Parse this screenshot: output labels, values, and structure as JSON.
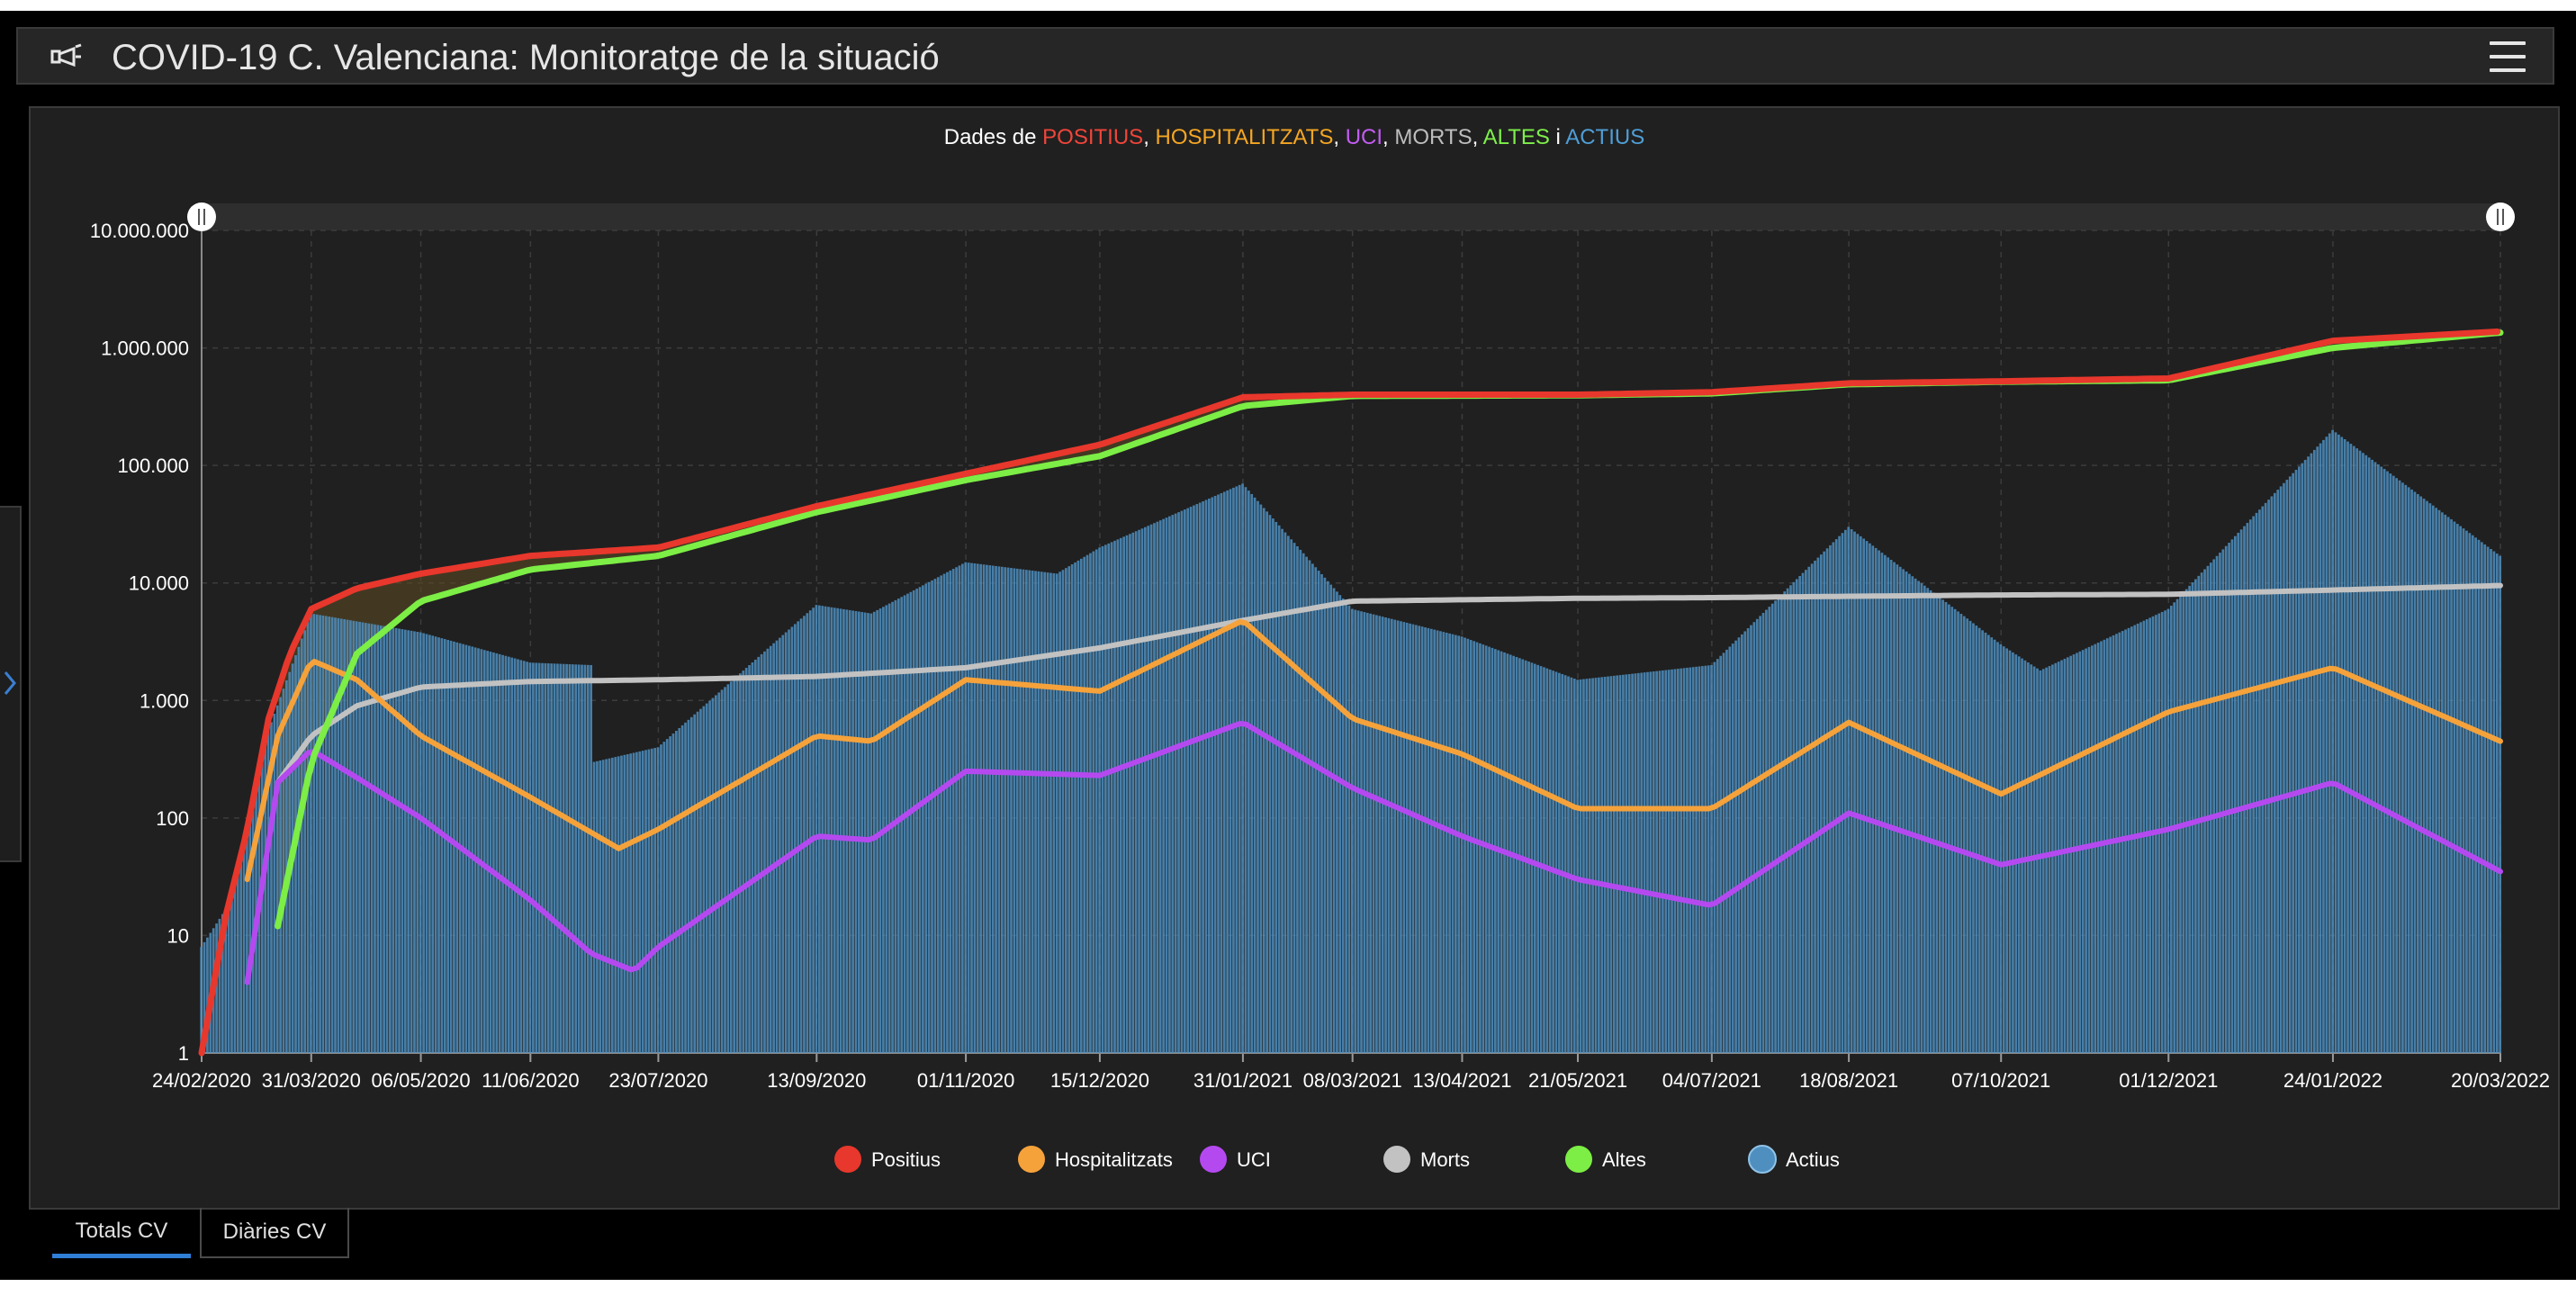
{
  "header": {
    "title": "COVID-19 C. Valenciana: Monitoratge de la situació",
    "icon": "trumpet-icon",
    "menu_icon": "hamburger-menu-icon"
  },
  "tabs": [
    {
      "label": "Totals CV",
      "active": true
    },
    {
      "label": "Diàries CV",
      "active": false
    }
  ],
  "chart_data": {
    "type": "line",
    "title_parts": [
      {
        "text": "Dades de ",
        "color": "#ffffff"
      },
      {
        "text": "POSITIUS",
        "color": "#f0453a"
      },
      {
        "text": ", ",
        "color": "#ffffff"
      },
      {
        "text": "HOSPITALITZATS",
        "color": "#f5a623"
      },
      {
        "text": ", ",
        "color": "#ffffff"
      },
      {
        "text": "UCI",
        "color": "#c35cf2"
      },
      {
        "text": ", ",
        "color": "#ffffff"
      },
      {
        "text": "MORTS",
        "color": "#bdbdbd"
      },
      {
        "text": ", ",
        "color": "#ffffff"
      },
      {
        "text": "ALTES",
        "color": "#7ef04a"
      },
      {
        "text": " i ",
        "color": "#ffffff"
      },
      {
        "text": "ACTIUS",
        "color": "#4f9ed6"
      }
    ],
    "y_scale": "log",
    "ylim": [
      1,
      10000000
    ],
    "y_ticks": [
      {
        "value": 1,
        "label": "1"
      },
      {
        "value": 10,
        "label": "10"
      },
      {
        "value": 100,
        "label": "100"
      },
      {
        "value": 1000,
        "label": "1.000"
      },
      {
        "value": 10000,
        "label": "10.000"
      },
      {
        "value": 100000,
        "label": "100.000"
      },
      {
        "value": 1000000,
        "label": "1.000.000"
      },
      {
        "value": 10000000,
        "label": "10.000.000"
      }
    ],
    "x_start": "24/02/2020",
    "x_end": "20/03/2022",
    "x_ticks": [
      "24/02/2020",
      "31/03/2020",
      "06/05/2020",
      "11/06/2020",
      "23/07/2020",
      "13/09/2020",
      "01/11/2020",
      "15/12/2020",
      "31/01/2021",
      "08/03/2021",
      "13/04/2021",
      "21/05/2021",
      "04/07/2021",
      "18/08/2021",
      "07/10/2021",
      "01/12/2021",
      "24/01/2022",
      "20/03/2022"
    ],
    "grid": true,
    "legend_position": "bottom",
    "series": [
      {
        "name": "Positius",
        "color": "#e8372c",
        "style": "line",
        "points": [
          [
            "24/02/2020",
            1
          ],
          [
            "03/03/2020",
            15
          ],
          [
            "10/03/2020",
            80
          ],
          [
            "17/03/2020",
            700
          ],
          [
            "24/03/2020",
            2500
          ],
          [
            "31/03/2020",
            6000
          ],
          [
            "15/04/2020",
            9000
          ],
          [
            "06/05/2020",
            12000
          ],
          [
            "11/06/2020",
            17000
          ],
          [
            "23/07/2020",
            20000
          ],
          [
            "13/09/2020",
            45000
          ],
          [
            "01/11/2020",
            85000
          ],
          [
            "15/12/2020",
            150000
          ],
          [
            "31/01/2021",
            380000
          ],
          [
            "08/03/2021",
            400000
          ],
          [
            "21/05/2021",
            400000
          ],
          [
            "04/07/2021",
            420000
          ],
          [
            "18/08/2021",
            500000
          ],
          [
            "07/10/2021",
            520000
          ],
          [
            "01/12/2021",
            550000
          ],
          [
            "24/01/2022",
            1150000
          ],
          [
            "20/03/2022",
            1380000
          ]
        ]
      },
      {
        "name": "Hospitalitzats",
        "color": "#f5a23b",
        "style": "line",
        "points": [
          [
            "10/03/2020",
            30
          ],
          [
            "20/03/2020",
            500
          ],
          [
            "31/03/2020",
            2200
          ],
          [
            "15/04/2020",
            1500
          ],
          [
            "06/05/2020",
            500
          ],
          [
            "11/06/2020",
            150
          ],
          [
            "10/07/2020",
            55
          ],
          [
            "23/07/2020",
            80
          ],
          [
            "13/09/2020",
            500
          ],
          [
            "01/10/2020",
            450
          ],
          [
            "01/11/2020",
            1500
          ],
          [
            "15/12/2020",
            1200
          ],
          [
            "31/01/2021",
            4800
          ],
          [
            "08/03/2021",
            700
          ],
          [
            "13/04/2021",
            350
          ],
          [
            "21/05/2021",
            120
          ],
          [
            "04/07/2021",
            120
          ],
          [
            "18/08/2021",
            650
          ],
          [
            "07/10/2021",
            160
          ],
          [
            "01/12/2021",
            800
          ],
          [
            "24/01/2022",
            1900
          ],
          [
            "20/03/2022",
            450
          ]
        ]
      },
      {
        "name": "UCI",
        "color": "#b549f0",
        "style": "line",
        "points": [
          [
            "10/03/2020",
            4
          ],
          [
            "20/03/2020",
            200
          ],
          [
            "31/03/2020",
            380
          ],
          [
            "15/04/2020",
            220
          ],
          [
            "06/05/2020",
            100
          ],
          [
            "11/06/2020",
            20
          ],
          [
            "01/07/2020",
            7
          ],
          [
            "15/07/2020",
            5
          ],
          [
            "23/07/2020",
            8
          ],
          [
            "13/09/2020",
            70
          ],
          [
            "01/10/2020",
            65
          ],
          [
            "01/11/2020",
            250
          ],
          [
            "15/12/2020",
            230
          ],
          [
            "31/01/2021",
            650
          ],
          [
            "08/03/2021",
            180
          ],
          [
            "13/04/2021",
            70
          ],
          [
            "21/05/2021",
            30
          ],
          [
            "04/07/2021",
            18
          ],
          [
            "18/08/2021",
            110
          ],
          [
            "07/10/2021",
            40
          ],
          [
            "01/12/2021",
            80
          ],
          [
            "24/01/2022",
            200
          ],
          [
            "20/03/2022",
            35
          ]
        ]
      },
      {
        "name": "Morts",
        "color": "#c2c2c2",
        "style": "line",
        "points": [
          [
            "20/03/2020",
            200
          ],
          [
            "31/03/2020",
            500
          ],
          [
            "15/04/2020",
            900
          ],
          [
            "06/05/2020",
            1300
          ],
          [
            "11/06/2020",
            1450
          ],
          [
            "23/07/2020",
            1500
          ],
          [
            "13/09/2020",
            1600
          ],
          [
            "01/11/2020",
            1900
          ],
          [
            "15/12/2020",
            2800
          ],
          [
            "31/01/2021",
            4800
          ],
          [
            "08/03/2021",
            7000
          ],
          [
            "21/05/2021",
            7400
          ],
          [
            "04/07/2021",
            7500
          ],
          [
            "18/08/2021",
            7700
          ],
          [
            "07/10/2021",
            7900
          ],
          [
            "01/12/2021",
            8000
          ],
          [
            "24/01/2022",
            8700
          ],
          [
            "20/03/2022",
            9500
          ]
        ]
      },
      {
        "name": "Altes",
        "color": "#7cee45",
        "style": "line",
        "points": [
          [
            "20/03/2020",
            12
          ],
          [
            "31/03/2020",
            300
          ],
          [
            "15/04/2020",
            2500
          ],
          [
            "06/05/2020",
            7000
          ],
          [
            "11/06/2020",
            13000
          ],
          [
            "23/07/2020",
            17000
          ],
          [
            "13/09/2020",
            40000
          ],
          [
            "01/11/2020",
            75000
          ],
          [
            "15/12/2020",
            120000
          ],
          [
            "31/01/2021",
            320000
          ],
          [
            "08/03/2021",
            390000
          ],
          [
            "21/05/2021",
            395000
          ],
          [
            "04/07/2021",
            410000
          ],
          [
            "18/08/2021",
            490000
          ],
          [
            "07/10/2021",
            515000
          ],
          [
            "01/12/2021",
            530000
          ],
          [
            "24/01/2022",
            1000000
          ],
          [
            "20/03/2022",
            1350000
          ]
        ]
      },
      {
        "name": "Actius",
        "color": "#4f8fc0",
        "style": "bars",
        "points": [
          [
            "24/02/2020",
            8
          ],
          [
            "05/03/2020",
            20
          ],
          [
            "15/03/2020",
            400
          ],
          [
            "31/03/2020",
            5500
          ],
          [
            "06/05/2020",
            3800
          ],
          [
            "11/06/2020",
            2100
          ],
          [
            "01/07/2020",
            2000
          ],
          [
            "02/07/2020",
            300
          ],
          [
            "23/07/2020",
            400
          ],
          [
            "13/09/2020",
            6500
          ],
          [
            "01/10/2020",
            5500
          ],
          [
            "01/11/2020",
            15000
          ],
          [
            "01/12/2020",
            12000
          ],
          [
            "15/12/2020",
            20000
          ],
          [
            "31/01/2021",
            70000
          ],
          [
            "08/03/2021",
            6000
          ],
          [
            "13/04/2021",
            3500
          ],
          [
            "21/05/2021",
            1500
          ],
          [
            "04/07/2021",
            2000
          ],
          [
            "18/08/2021",
            30000
          ],
          [
            "07/10/2021",
            3000
          ],
          [
            "20/10/2021",
            1800
          ],
          [
            "01/12/2021",
            6000
          ],
          [
            "24/01/2022",
            200000
          ],
          [
            "20/03/2022",
            17000
          ]
        ]
      }
    ]
  }
}
